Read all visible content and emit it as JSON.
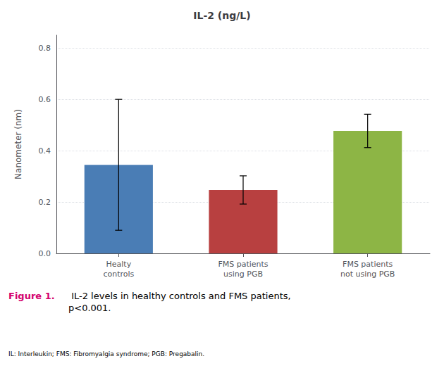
{
  "chart_data": {
    "type": "bar",
    "title": "IL-2 (ng/L)",
    "ylabel": "Nanometer (nm)",
    "categories": [
      "Healty\ncontrols",
      "FMS patients\nusing PGB",
      "FMS patients\nnot using PGB"
    ],
    "values": [
      0.345,
      0.247,
      0.477
    ],
    "errors": [
      0.255,
      0.055,
      0.065
    ],
    "colors": [
      "#4a7db5",
      "#b84040",
      "#8db545"
    ],
    "ylim": [
      0,
      0.85
    ],
    "yticks": [
      {
        "value": 0,
        "label": "0.0"
      },
      0.2,
      0.4,
      0.6,
      0.8
    ],
    "grid": true,
    "annotations": [
      {
        "text": "Figure 1.",
        "color": "#d4006e"
      },
      {
        "text": " IL-2 levels in healthy controls and FMS patients,\np<0.001."
      },
      {
        "text": "IL: Interleukin; FMS: Fibromyalgia syndrome; PGB: Pregabalin."
      }
    ]
  }
}
